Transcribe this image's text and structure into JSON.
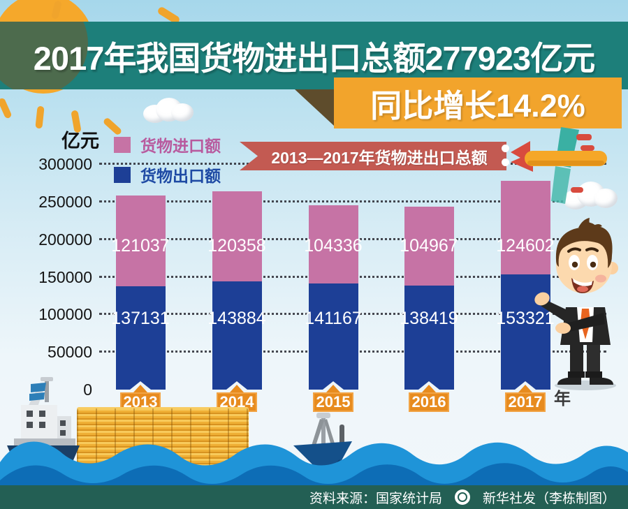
{
  "header": {
    "title": "2017年我国货物进出口总额277923亿元",
    "subtitle": "同比增长14.2%"
  },
  "chart_data": {
    "type": "bar",
    "stacked": true,
    "title": "2013—2017年货物进出口总额",
    "unit_label": "亿元",
    "x_axis_label": "年",
    "categories": [
      "2013",
      "2014",
      "2015",
      "2016",
      "2017"
    ],
    "series": [
      {
        "name": "货物进口额",
        "role": "import",
        "color": "#c673a5",
        "label_color": "#b85a9e",
        "values": [
          121037,
          120358,
          104336,
          104967,
          124602
        ]
      },
      {
        "name": "货物出口额",
        "role": "export",
        "color": "#1d3f96",
        "label_color": "#1e4aa4",
        "values": [
          137131,
          143884,
          141167,
          138419,
          153321
        ]
      }
    ],
    "y_ticks": [
      300000,
      250000,
      200000,
      150000,
      100000,
      50000,
      0
    ],
    "ylim": [
      0,
      300000
    ],
    "grid": "dotted-horizontal",
    "legend_position": "top-left"
  },
  "footer": {
    "source": "资料来源：国家统计局",
    "credit": "新华社发（李栋制图）",
    "logo": "xinhua-emblem-icon"
  },
  "colors": {
    "banner_teal": "#1d7f7a",
    "banner_orange": "#f2a42c",
    "ribbon_red": "#c35a52",
    "bar_import_pink": "#c673a5",
    "bar_export_blue": "#1d3f96",
    "year_tag_orange": "#e78b1e",
    "wave_light": "#1f94d8",
    "wave_dark": "#0d6db6",
    "footer_green": "#235f54"
  }
}
